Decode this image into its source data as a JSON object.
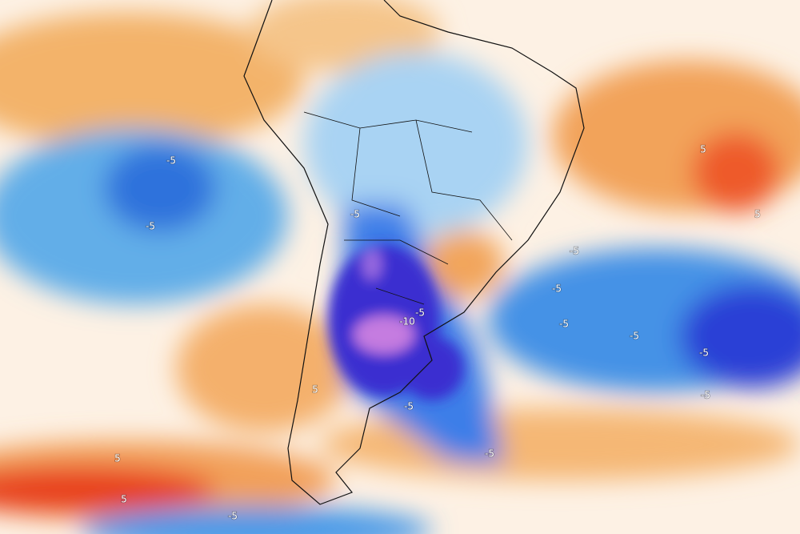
{
  "map": {
    "contour_labels": [
      "-5",
      "-5",
      "-5",
      "-5",
      "-5",
      "-5",
      "-5",
      "-5",
      "-5",
      "-5",
      "-5",
      "-5",
      "-5",
      "5",
      "5",
      "5",
      "5",
      "5",
      "-10"
    ]
  }
}
